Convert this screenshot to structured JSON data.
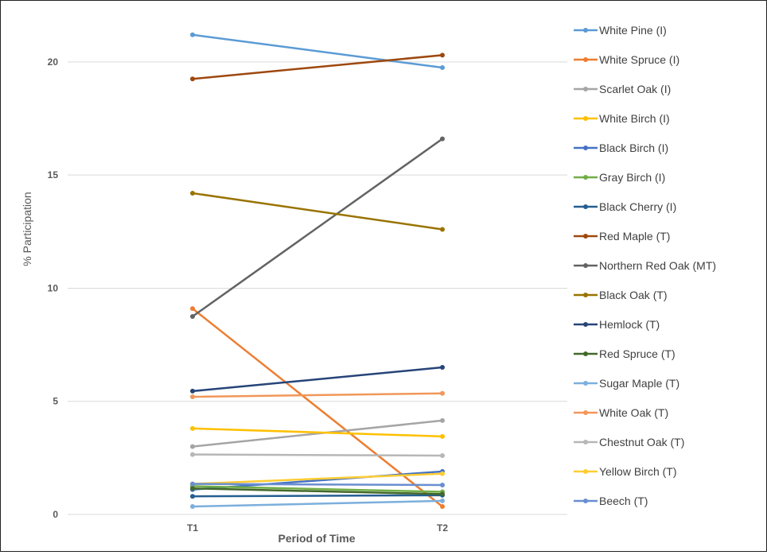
{
  "chart_data": {
    "type": "line",
    "title": "",
    "xlabel": "Period of Time",
    "ylabel": "% Participation",
    "categories": [
      "T1",
      "T2"
    ],
    "ylim": [
      0,
      22
    ],
    "yticks": [
      0,
      5,
      10,
      15,
      20
    ],
    "grid": true,
    "legend_position": "right",
    "series": [
      {
        "name": "White Pine (I)",
        "color": "#5b9bd5",
        "values": [
          21.2,
          19.75
        ]
      },
      {
        "name": "White Spruce (I)",
        "color": "#ed7d31",
        "values": [
          9.1,
          0.35
        ]
      },
      {
        "name": "Scarlet Oak (I)",
        "color": "#a5a5a5",
        "values": [
          3.0,
          4.15
        ]
      },
      {
        "name": "White Birch (I)",
        "color": "#ffc000",
        "values": [
          3.8,
          3.45
        ]
      },
      {
        "name": "Black Birch (I)",
        "color": "#4472c4",
        "values": [
          1.1,
          1.9
        ]
      },
      {
        "name": "Gray Birch (I)",
        "color": "#70ad47",
        "values": [
          1.25,
          1.0
        ]
      },
      {
        "name": "Black Cherry (I)",
        "color": "#255e91",
        "values": [
          0.8,
          0.85
        ]
      },
      {
        "name": "Red Maple (T)",
        "color": "#9e480e",
        "values": [
          19.25,
          20.3
        ]
      },
      {
        "name": "Northern Red Oak (MT)",
        "color": "#636363",
        "values": [
          8.75,
          16.6
        ]
      },
      {
        "name": "Black Oak (T)",
        "color": "#997300",
        "values": [
          14.2,
          12.6
        ]
      },
      {
        "name": "Hemlock (T)",
        "color": "#264478",
        "values": [
          5.45,
          6.5
        ]
      },
      {
        "name": "Red Spruce (T)",
        "color": "#43682b",
        "values": [
          1.15,
          0.9
        ]
      },
      {
        "name": "Sugar Maple (T)",
        "color": "#7cafdd",
        "values": [
          0.35,
          0.6
        ]
      },
      {
        "name": "White Oak (T)",
        "color": "#f1975a",
        "values": [
          5.2,
          5.35
        ]
      },
      {
        "name": "Chestnut Oak (T)",
        "color": "#b7b7b7",
        "values": [
          2.65,
          2.6
        ]
      },
      {
        "name": "Yellow Birch (T)",
        "color": "#ffcd33",
        "values": [
          1.35,
          1.8
        ]
      },
      {
        "name": "Beech (T)",
        "color": "#698ed0",
        "values": [
          1.35,
          1.3
        ]
      }
    ]
  }
}
